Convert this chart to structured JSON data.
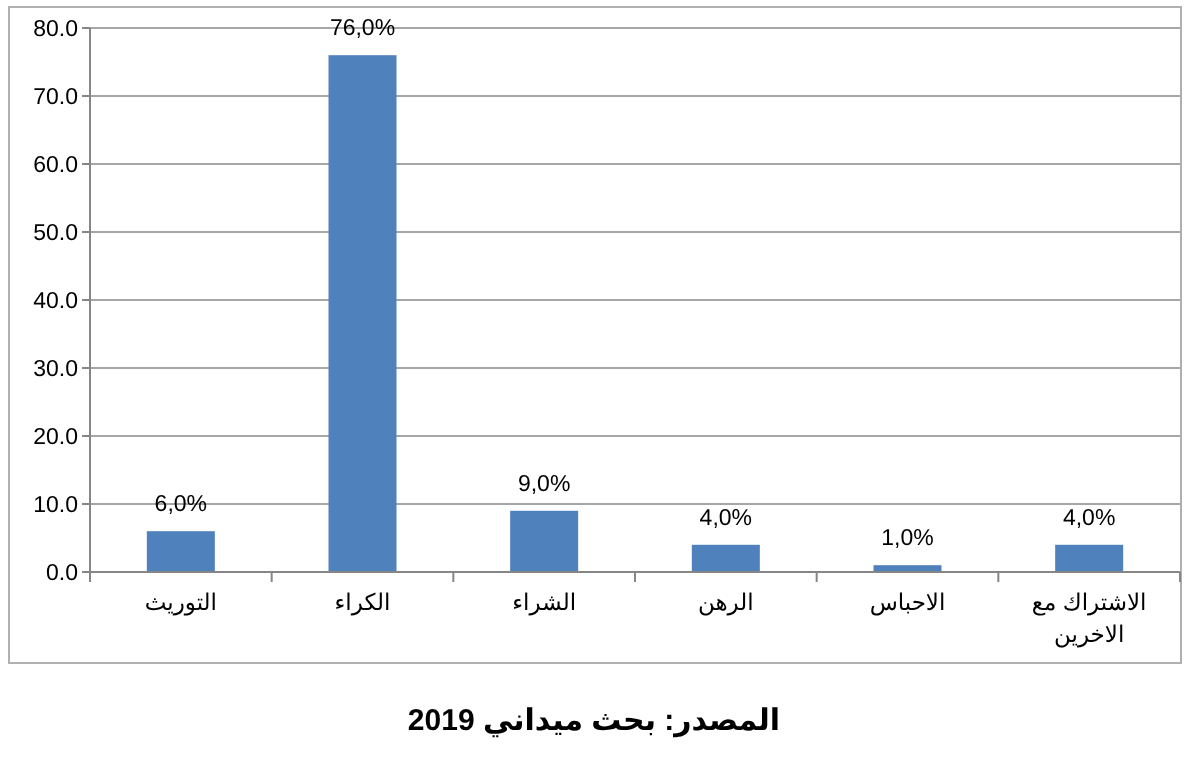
{
  "chart_data": {
    "type": "bar",
    "categories": [
      "التوريث",
      "الكراء",
      "الشراء",
      "الرهن",
      "الاحباس",
      "الاشتراك مع الاخرين"
    ],
    "values": [
      6.0,
      76.0,
      9.0,
      4.0,
      1.0,
      4.0
    ],
    "value_labels": [
      "6,0%",
      "76,0%",
      "9,0%",
      "4,0%",
      "1,0%",
      "4,0%"
    ],
    "color": "#4f81bd",
    "ylim": [
      0,
      80
    ],
    "yticks": [
      {
        "value": 0,
        "label": "0.0"
      },
      {
        "value": 10,
        "label": "10.0"
      },
      {
        "value": 20,
        "label": "20.0"
      },
      {
        "value": 30,
        "label": "30.0"
      },
      {
        "value": 40,
        "label": "40.0"
      },
      {
        "value": 50,
        "label": "50.0"
      },
      {
        "value": 60,
        "label": "60.0"
      },
      {
        "value": 70,
        "label": "70.0"
      },
      {
        "value": 80,
        "label": "80.0"
      }
    ],
    "grid": "y",
    "annotations": [
      "المصدر: بحث ميداني 2019"
    ]
  }
}
